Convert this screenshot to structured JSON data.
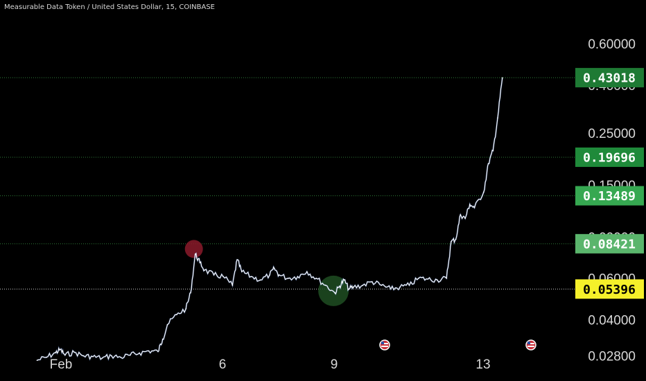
{
  "header": {
    "symbol_title": "Measurable Data Token / United States Dollar, 15, COINBASE"
  },
  "colors": {
    "background": "#000000",
    "price_line": "#ffffff",
    "wick_accent": "#6b8fd6",
    "grid_dotted": "#2f7d3a",
    "entry_marker": "#8b1a2a",
    "support_marker": "#1f4d22"
  },
  "chart_data": {
    "type": "line",
    "scale": "log",
    "ylim": [
      0.026,
      0.6
    ],
    "y_ticks": [
      "0.60000",
      "0.40000",
      "0.25000",
      "0.15000",
      "0.09000",
      "0.06000",
      "0.04000",
      "0.02800"
    ],
    "x_ticks": [
      "Feb",
      "6",
      "9",
      "13"
    ],
    "series": [
      {
        "points": [
          [
            "Feb 1 00:00",
            0.0268
          ],
          [
            "Feb 1 06:00",
            0.0276
          ],
          [
            "Feb 1 12:00",
            0.0289
          ],
          [
            "Feb 1 15:00",
            0.0298
          ],
          [
            "Feb 1 18:00",
            0.0282
          ],
          [
            "Feb 2 00:00",
            0.029
          ],
          [
            "Feb 2 06:00",
            0.028
          ],
          [
            "Feb 2 12:00",
            0.0278
          ],
          [
            "Feb 2 18:00",
            0.0274
          ],
          [
            "Feb 3 00:00",
            0.028
          ],
          [
            "Feb 3 06:00",
            0.0276
          ],
          [
            "Feb 3 12:00",
            0.0282
          ],
          [
            "Feb 3 18:00",
            0.0288
          ],
          [
            "Feb 4 00:00",
            0.0294
          ],
          [
            "Feb 4 06:00",
            0.0292
          ],
          [
            "Feb 4 09:00",
            0.033
          ],
          [
            "Feb 4 12:00",
            0.038
          ],
          [
            "Feb 4 18:00",
            0.042
          ],
          [
            "Feb 5 00:00",
            0.0445
          ],
          [
            "Feb 5 03:00",
            0.052
          ],
          [
            "Feb 5 06:00",
            0.076
          ],
          [
            "Feb 5 09:00",
            0.07
          ],
          [
            "Feb 5 12:00",
            0.065
          ],
          [
            "Feb 5 18:00",
            0.062
          ],
          [
            "Feb 6 00:00",
            0.061
          ],
          [
            "Feb 6 06:00",
            0.056
          ],
          [
            "Feb 6 09:00",
            0.072
          ],
          [
            "Feb 6 12:00",
            0.064
          ],
          [
            "Feb 6 18:00",
            0.061
          ],
          [
            "Feb 7 00:00",
            0.059
          ],
          [
            "Feb 7 06:00",
            0.062
          ],
          [
            "Feb 7 09:00",
            0.066
          ],
          [
            "Feb 7 12:00",
            0.062
          ],
          [
            "Feb 7 18:00",
            0.06
          ],
          [
            "Feb 8 00:00",
            0.061
          ],
          [
            "Feb 8 06:00",
            0.064
          ],
          [
            "Feb 8 12:00",
            0.06
          ],
          [
            "Feb 8 18:00",
            0.056
          ],
          [
            "Feb 9 00:00",
            0.052
          ],
          [
            "Feb 9 03:00",
            0.0555
          ],
          [
            "Feb 9 06:00",
            0.059
          ],
          [
            "Feb 9 09:00",
            0.054
          ],
          [
            "Feb 9 12:00",
            0.055
          ],
          [
            "Feb 9 18:00",
            0.056
          ],
          [
            "Feb 10 00:00",
            0.058
          ],
          [
            "Feb 10 06:00",
            0.056
          ],
          [
            "Feb 10 12:00",
            0.054
          ],
          [
            "Feb 10 18:00",
            0.055
          ],
          [
            "Feb 11 00:00",
            0.056
          ],
          [
            "Feb 11 06:00",
            0.06
          ],
          [
            "Feb 11 12:00",
            0.0595
          ],
          [
            "Feb 11 18:00",
            0.059
          ],
          [
            "Feb 12 00:00",
            0.06
          ],
          [
            "Feb 12 03:00",
            0.086
          ],
          [
            "Feb 12 06:00",
            0.088
          ],
          [
            "Feb 12 09:00",
            0.112
          ],
          [
            "Feb 12 12:00",
            0.108
          ],
          [
            "Feb 12 15:00",
            0.124
          ],
          [
            "Feb 12 18:00",
            0.12
          ],
          [
            "Feb 13 00:00",
            0.14
          ],
          [
            "Feb 13 03:00",
            0.185
          ],
          [
            "Feb 13 06:00",
            0.21
          ],
          [
            "Feb 13 09:00",
            0.29
          ],
          [
            "Feb 13 12:00",
            0.43
          ]
        ]
      }
    ],
    "price_tags": [
      {
        "value": "0.43018",
        "bg": "#1e7a34",
        "fg": "#ffffff"
      },
      {
        "value": "0.19696",
        "bg": "#1f8a3a",
        "fg": "#ffffff"
      },
      {
        "value": "0.13489",
        "bg": "#36a851",
        "fg": "#ffffff"
      },
      {
        "value": "0.08421",
        "bg": "#5ab56c",
        "fg": "#ffffff"
      },
      {
        "value": "0.05396",
        "bg": "#f5f02a",
        "fg": "#000000"
      }
    ],
    "event_icons": [
      {
        "name": "us-flag-event-icon",
        "date": "Feb 10 12:00"
      },
      {
        "name": "us-flag-event-icon",
        "date": "Feb 14 00:00"
      }
    ],
    "markers": [
      {
        "name": "entry-marker",
        "date": "Feb 5 06:00",
        "value": 0.08
      },
      {
        "name": "support-marker",
        "date": "Feb 9 00:00",
        "value": 0.053
      }
    ]
  }
}
